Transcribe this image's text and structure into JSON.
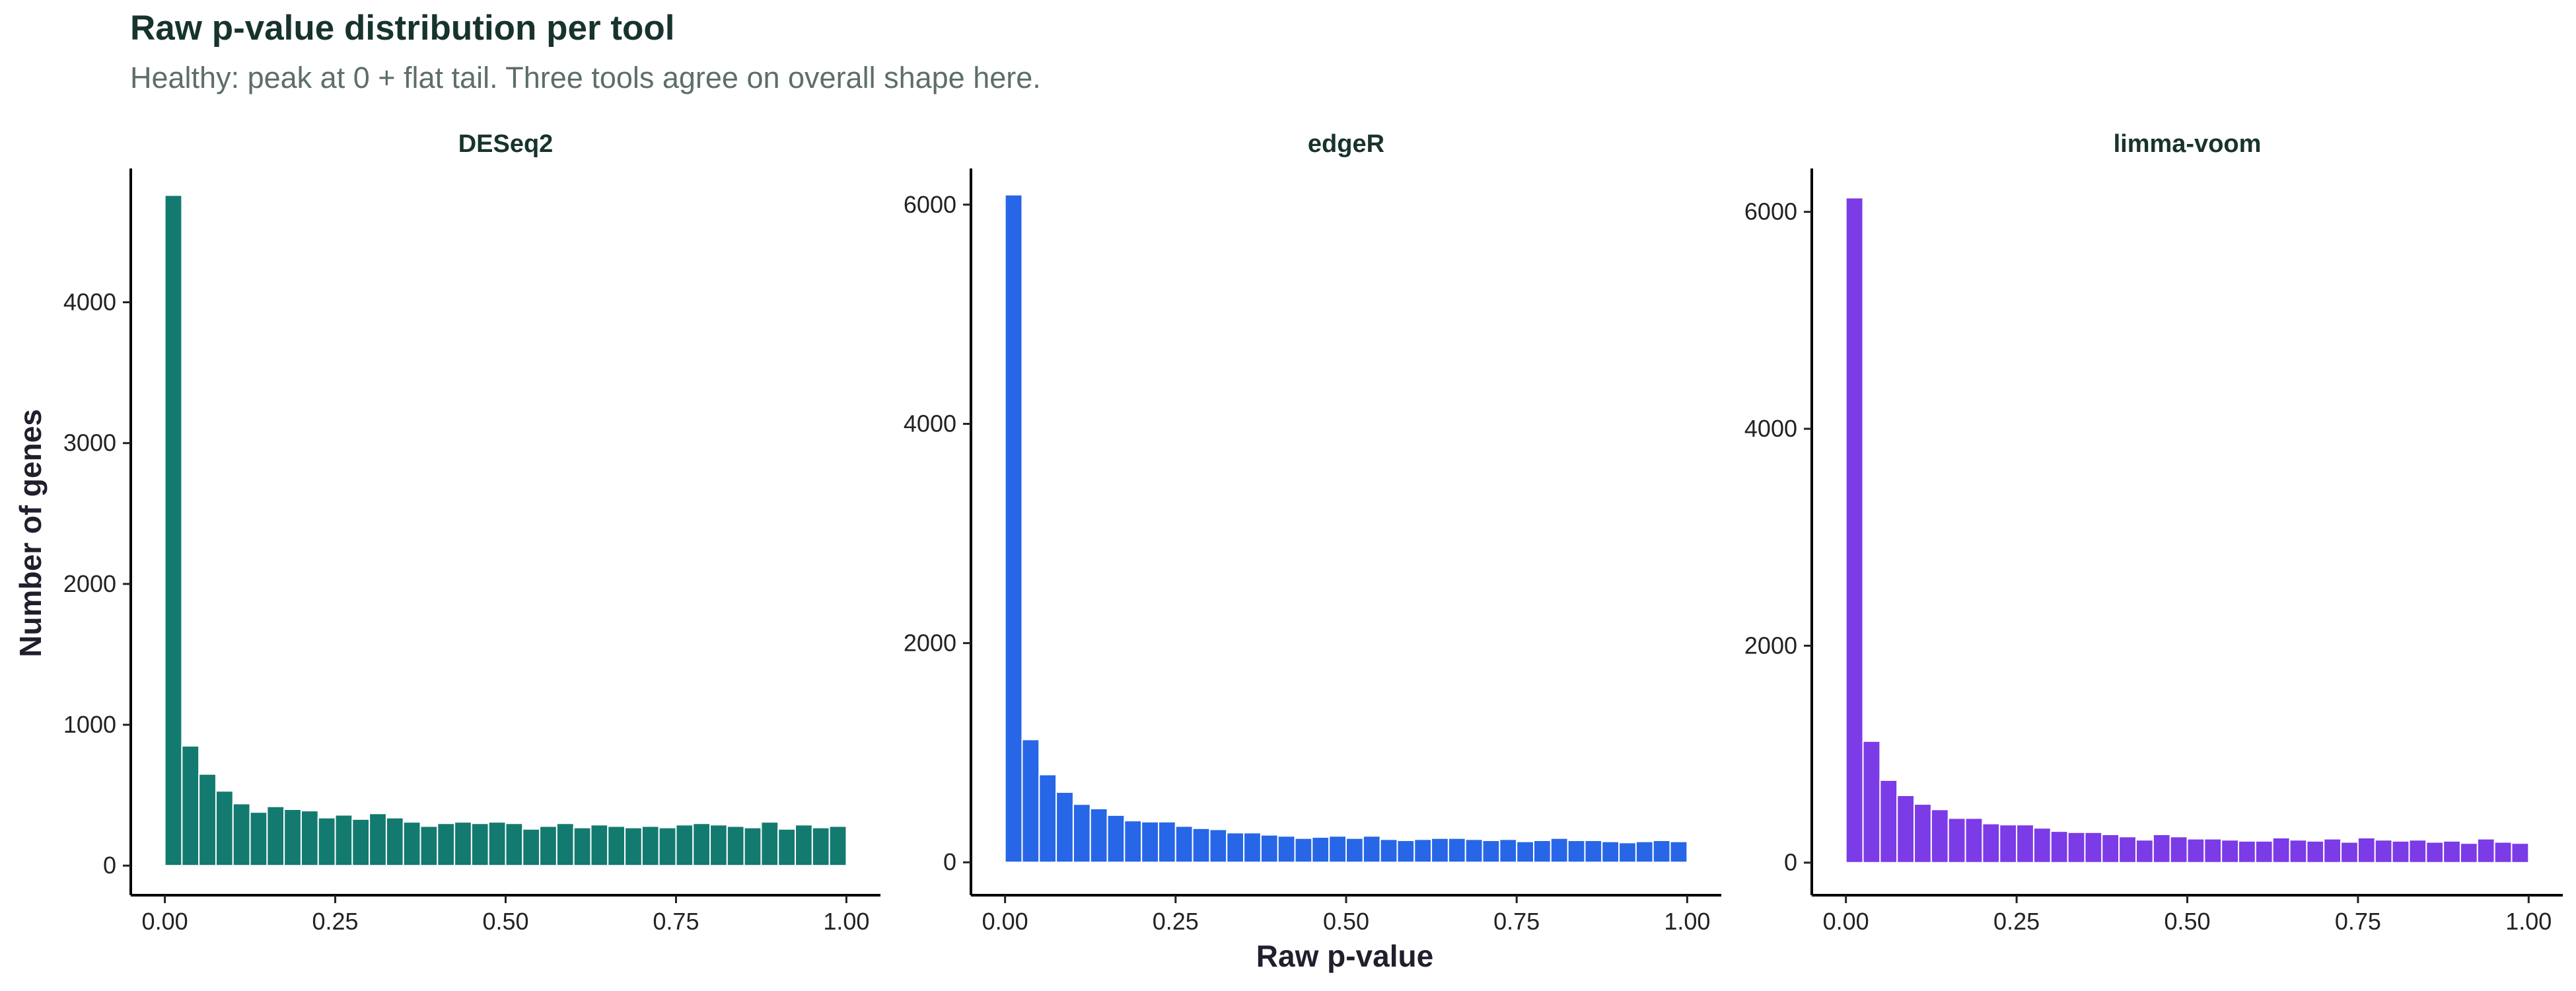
{
  "title": "Raw p-value distribution per tool",
  "subtitle": "Healthy: peak at 0 + flat tail. Three tools agree on overall shape here.",
  "chart_data": {
    "type": "bar",
    "title": "Raw p-value distribution per tool",
    "subtitle": "Healthy: peak at 0 + flat tail. Three tools agree on overall shape here.",
    "xlabel": "Raw p-value",
    "ylabel": "Number of genes",
    "grid": false,
    "legend": "none",
    "xlim": [
      0,
      1
    ],
    "x_ticks": [
      0,
      0.25,
      0.5,
      0.75,
      1
    ],
    "x_tick_labels": [
      "0.00",
      "0.25",
      "0.50",
      "0.75",
      "1.00"
    ],
    "bin_width": 0.025,
    "bin_centers": [
      0.0125,
      0.0375,
      0.0625,
      0.0875,
      0.1125,
      0.1375,
      0.1625,
      0.1875,
      0.2125,
      0.2375,
      0.2625,
      0.2875,
      0.3125,
      0.3375,
      0.3625,
      0.3875,
      0.4125,
      0.4375,
      0.4625,
      0.4875,
      0.5125,
      0.5375,
      0.5625,
      0.5875,
      0.6125,
      0.6375,
      0.6625,
      0.6875,
      0.7125,
      0.7375,
      0.7625,
      0.7875,
      0.8125,
      0.8375,
      0.8625,
      0.8875,
      0.9125,
      0.9375,
      0.9625,
      0.9875
    ],
    "panels": [
      {
        "name": "DESeq2",
        "color": "#137a6f",
        "ylim": [
          -210,
          4950
        ],
        "y_ticks": [
          0,
          1000,
          2000,
          3000,
          4000
        ],
        "values": [
          4760,
          850,
          650,
          530,
          440,
          380,
          420,
          400,
          390,
          340,
          360,
          330,
          370,
          340,
          310,
          280,
          300,
          310,
          300,
          310,
          300,
          260,
          280,
          300,
          270,
          290,
          280,
          270,
          280,
          270,
          290,
          300,
          290,
          280,
          270,
          310,
          260,
          290,
          270,
          280
        ]
      },
      {
        "name": "edgeR",
        "color": "#2766e7",
        "ylim": [
          -300,
          6330
        ],
        "y_ticks": [
          0,
          2000,
          4000,
          6000
        ],
        "values": [
          6090,
          1120,
          800,
          640,
          530,
          490,
          430,
          380,
          370,
          370,
          330,
          310,
          300,
          270,
          270,
          250,
          240,
          220,
          230,
          240,
          220,
          240,
          210,
          200,
          210,
          220,
          220,
          210,
          200,
          210,
          190,
          200,
          220,
          200,
          200,
          190,
          180,
          190,
          200,
          190
        ]
      },
      {
        "name": "limma-voom",
        "color": "#7b3be6",
        "ylim": [
          -300,
          6400
        ],
        "y_ticks": [
          0,
          2000,
          4000,
          6000
        ],
        "values": [
          6130,
          1120,
          760,
          620,
          540,
          490,
          410,
          410,
          360,
          350,
          350,
          320,
          290,
          280,
          280,
          260,
          240,
          210,
          260,
          240,
          220,
          220,
          210,
          200,
          200,
          230,
          210,
          200,
          220,
          190,
          230,
          210,
          200,
          210,
          190,
          200,
          180,
          220,
          190,
          180
        ]
      }
    ]
  }
}
